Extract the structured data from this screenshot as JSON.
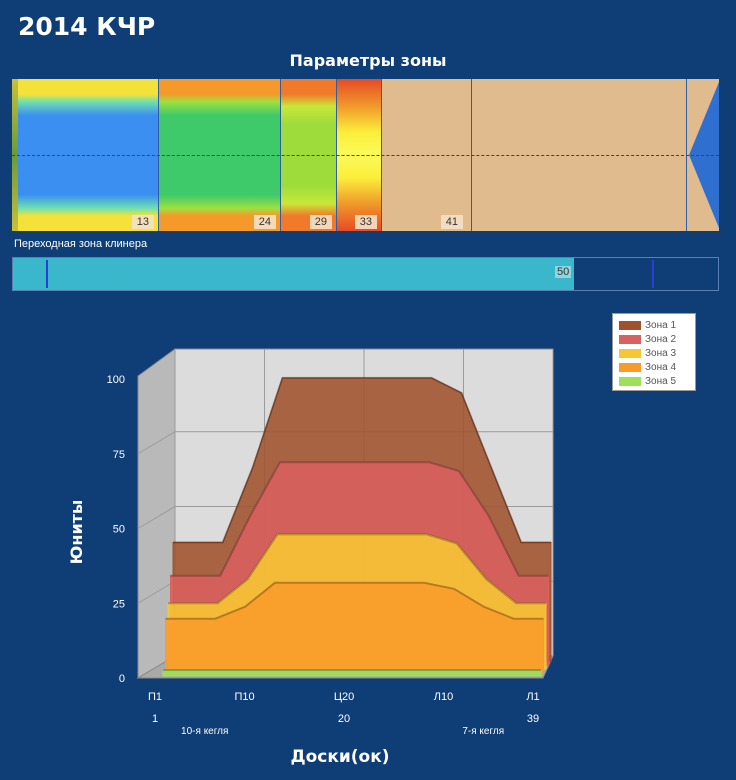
{
  "title": "2014 КЧР",
  "zone_panel": {
    "title": "Параметры зоны",
    "segments": [
      {
        "label": "13"
      },
      {
        "label": "24"
      },
      {
        "label": "29"
      },
      {
        "label": "33"
      },
      {
        "label": "41"
      }
    ]
  },
  "transition": {
    "label": "Переходная зона клинера",
    "value": "50"
  },
  "chart_data": {
    "type": "area",
    "y_axis_title": "Юниты",
    "x_axis_title": "Доски(ок)",
    "ylim": [
      0,
      100
    ],
    "y_ticks": [
      "0",
      "25",
      "50",
      "75",
      "100"
    ],
    "x_ticks": [
      {
        "board": 1,
        "label": "П1",
        "number": "1"
      },
      {
        "board": 10,
        "label": "П10",
        "number": ""
      },
      {
        "board": 20,
        "label": "Ц20",
        "number": "20"
      },
      {
        "board": 30,
        "label": "Л10",
        "number": ""
      },
      {
        "board": 39,
        "label": "Л1",
        "number": "39"
      }
    ],
    "notes": [
      {
        "board": 6,
        "text": "10-я кегля"
      },
      {
        "board": 34,
        "text": "7-я кегля"
      }
    ],
    "x": [
      1,
      3,
      6,
      9,
      12,
      15,
      27,
      30,
      33,
      36,
      39
    ],
    "series": [
      {
        "name": "Зона 1",
        "color": "#a0522d",
        "values": [
          40,
          40,
          40,
          65,
          95,
          95,
          95,
          90,
          65,
          40,
          40
        ]
      },
      {
        "name": "Зона 2",
        "color": "#d9605f",
        "values": [
          30,
          30,
          30,
          50,
          68,
          68,
          68,
          65,
          50,
          30,
          30
        ]
      },
      {
        "name": "Зона 3",
        "color": "#f7c733",
        "values": [
          22,
          22,
          22,
          30,
          45,
          45,
          45,
          42,
          30,
          22,
          22
        ]
      },
      {
        "name": "Зона 4",
        "color": "#f99b2a",
        "values": [
          18,
          18,
          18,
          22,
          30,
          30,
          30,
          28,
          22,
          18,
          18
        ]
      },
      {
        "name": "Зона 5",
        "color": "#9de05a",
        "values": [
          2,
          2,
          2,
          2,
          2,
          2,
          2,
          2,
          2,
          2,
          2
        ]
      }
    ],
    "grid": true,
    "legend_position": "top-right"
  }
}
